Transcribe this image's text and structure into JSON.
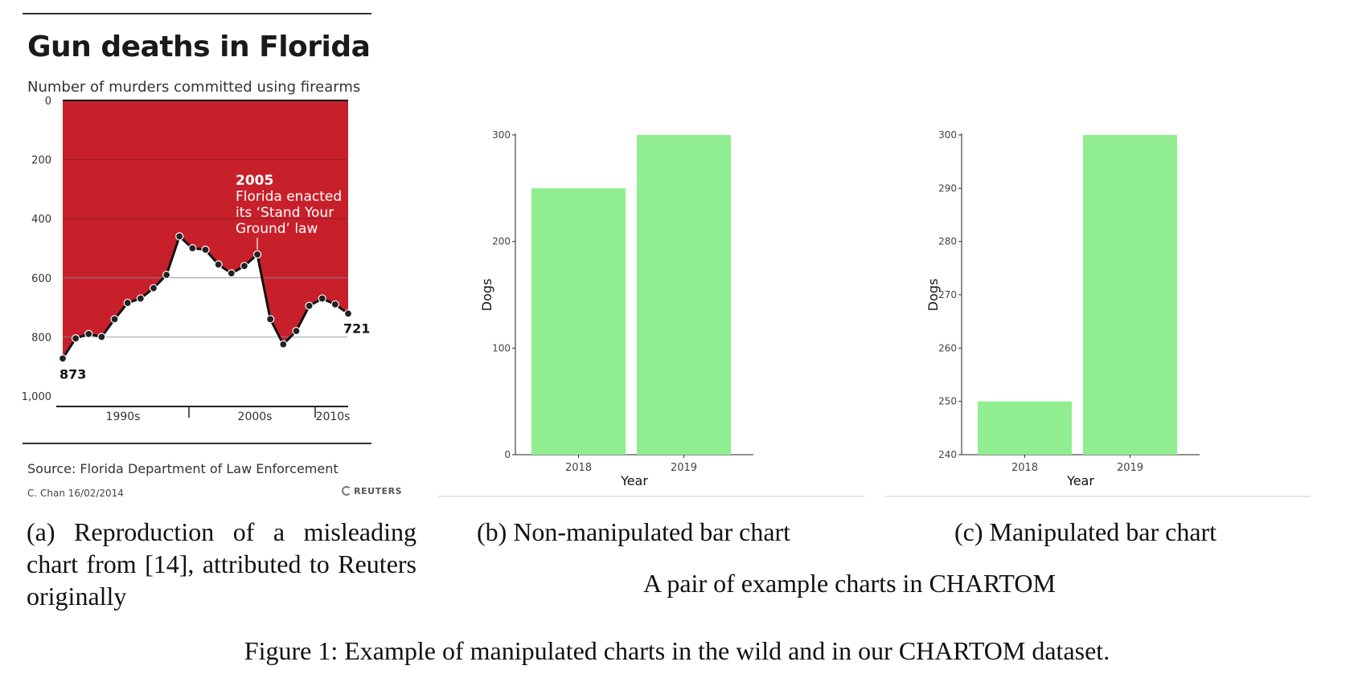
{
  "reuters": {
    "title": "Gun deaths in Florida",
    "subtitle": "Number of murders committed using firearms",
    "source": "Source: Florida Department of Law Enforcement",
    "credit": "C. Chan  16/02/2014",
    "brand": "REUTERS",
    "colors": {
      "fill": "#c8202b",
      "line": "#111111"
    }
  },
  "bar_fill": "#90ee90",
  "captions": {
    "a": "(a) Reproduction of a misleading chart from [14], attributed to Reuters originally",
    "b": "(b) Non-manipulated bar chart",
    "c": "(c) Manipulated bar chart",
    "group": "A pair of example charts in CHARTOM",
    "figure": "Figure 1: Example of manipulated charts in the wild and in our CHARTOM dataset."
  },
  "chart_data": [
    {
      "type": "line",
      "title": "Gun deaths in Florida",
      "subtitle": "Number of murders committed using firearms",
      "y_inverted": true,
      "ylim": [
        0,
        1000
      ],
      "y_ticks": [
        "0",
        "200",
        "400",
        "600",
        "800",
        "1,000"
      ],
      "x_tick_labels": [
        "1990s",
        "2000s",
        "2010s"
      ],
      "x": [
        1990,
        1991,
        1992,
        1993,
        1994,
        1995,
        1996,
        1997,
        1998,
        1999,
        2000,
        2001,
        2002,
        2003,
        2004,
        2005,
        2006,
        2007,
        2008,
        2009,
        2010,
        2011,
        2012
      ],
      "values": [
        873,
        805,
        790,
        800,
        740,
        685,
        670,
        635,
        590,
        460,
        500,
        505,
        555,
        585,
        560,
        521,
        740,
        825,
        780,
        695,
        670,
        690,
        721
      ],
      "annotations": [
        {
          "year": "2005",
          "text": [
            "Florida enacted",
            "its ‘Stand Your",
            "Ground’ law"
          ]
        },
        {
          "label": "873"
        },
        {
          "label": "721"
        }
      ],
      "grid": true
    },
    {
      "type": "bar",
      "categories": [
        "2018",
        "2019"
      ],
      "values": [
        250,
        300
      ],
      "xlabel": "Year",
      "ylabel": "Dogs",
      "ylim": [
        0,
        300
      ],
      "y_ticks": [
        0,
        100,
        200,
        300
      ],
      "grid": false
    },
    {
      "type": "bar",
      "categories": [
        "2018",
        "2019"
      ],
      "values": [
        250,
        300
      ],
      "xlabel": "Year",
      "ylabel": "Dogs",
      "ylim": [
        240,
        300
      ],
      "y_ticks": [
        240,
        250,
        260,
        270,
        280,
        290,
        300
      ],
      "grid": false
    }
  ]
}
